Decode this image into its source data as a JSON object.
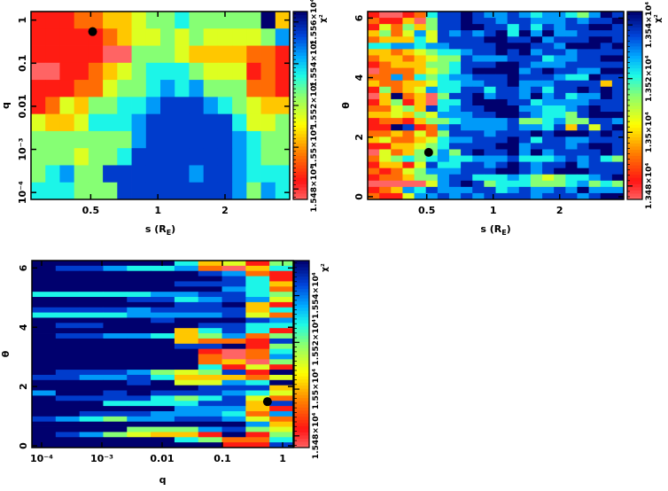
{
  "chart_data": [
    {
      "type": "heatmap",
      "id": "s-q",
      "xlabel": "s (R",
      "xlabel_sub": "E",
      "xlabel_end": ")",
      "ylabel": "q",
      "xscale": "log",
      "yscale": "log",
      "xlim": [
        0.27,
        3.9
      ],
      "ylim": [
        6.9e-05,
        1.58
      ],
      "xticks": [
        {
          "value": 0.5,
          "label": "0.5"
        },
        {
          "value": 1,
          "label": "1"
        },
        {
          "value": 2,
          "label": "2"
        }
      ],
      "yticks": [
        {
          "value": 1,
          "label": "1"
        },
        {
          "value": 0.1,
          "label": "0.1"
        },
        {
          "value": 0.01,
          "label": "0.01"
        },
        {
          "value": 0.001,
          "label": "10⁻³"
        },
        {
          "value": 0.0001,
          "label": "10⁻⁴"
        }
      ],
      "colorbar": {
        "label": "χ²",
        "range": [
          15475,
          15565
        ],
        "ticks": [
          {
            "value": 15480,
            "label": "1.548×10⁴"
          },
          {
            "value": 15500,
            "label": "1.55×10⁴"
          },
          {
            "value": 15520,
            "label": "1.552×10⁴"
          },
          {
            "value": 15540,
            "label": "1.554×10⁴"
          },
          {
            "value": 15560,
            "label": "1.556×10⁴"
          }
        ]
      },
      "grid_note": "rows top (high y) to bottom; digits 0 (lowest χ², red) to 9 (highest χ², navy)",
      "grid": [
        "111223345565555593",
        "111112344545444457",
        "111110055543333221",
        "001123456665444121",
        "111224556767555221",
        "124355667888765433",
        "433466678888886445",
        "555555578888887655",
        "555455688888887655",
        "567558888887887666",
        "666555888888887576"
      ],
      "best_fit": {
        "x": 0.51,
        "y": 0.54
      }
    },
    {
      "type": "heatmap",
      "id": "s-theta",
      "xlabel": "s (R",
      "xlabel_sub": "E",
      "xlabel_end": ")",
      "ylabel": "θ",
      "xscale": "log",
      "yscale": "linear",
      "xlim": [
        0.27,
        3.9
      ],
      "ylim": [
        -0.09,
        6.22
      ],
      "xticks": [
        {
          "value": 0.5,
          "label": "0.5"
        },
        {
          "value": 1,
          "label": "1"
        },
        {
          "value": 2,
          "label": "2"
        }
      ],
      "yticks": [
        {
          "value": 0,
          "label": "0"
        },
        {
          "value": 2,
          "label": "2"
        },
        {
          "value": 4,
          "label": "4"
        },
        {
          "value": 6,
          "label": "6"
        }
      ],
      "colorbar": {
        "label": "χ²",
        "range": [
          13475,
          13545
        ],
        "ticks": [
          {
            "value": 13480,
            "label": "1.348×10⁴"
          },
          {
            "value": 13500,
            "label": "1.35×10⁴"
          },
          {
            "value": 13520,
            "label": "1.352×10⁴"
          },
          {
            "value": 13540,
            "label": "1.354×10⁴"
          }
        ]
      },
      "grid": [
        "1001268898778767765798",
        "2113058898878877787889",
        "1425358899886868788998",
        "3524748787896979778888",
        "2333648888998897888998",
        "6677677888899988799989",
        "3323456678898978878888",
        "2332345587778886778899",
        "1233355688899877788888",
        "0222345689999789887799",
        "2272656778889888766988",
        "3223346677889777888838",
        "1523476688688786889898",
        "0392305889788797867798",
        "1351306689998867777888",
        "2245386788999776678988",
        "3343547778899876658999",
        "1221355677778556755887",
        "1198127877778776838489",
        "2232425888788898999898",
        "3422346778889868877888",
        "1133456888899788878998",
        "0423557589889797888898",
        "2456567667778666787865",
        "1331486688789878897888",
        "2124577788899878999888",
        "1223557886667654566789",
        "0000047898566655567565",
        "1237687778867877879777",
        "2114778787888878887899"
      ],
      "best_fit": {
        "x": 0.51,
        "y": 1.49
      }
    },
    {
      "type": "heatmap",
      "id": "q-theta",
      "xlabel": "q",
      "xlabel_sub": "",
      "xlabel_end": "",
      "ylabel": "θ",
      "xscale": "log",
      "yscale": "linear",
      "xlim": [
        6.9e-05,
        1.5
      ],
      "ylim": [
        -0.06,
        6.25
      ],
      "xticks": [
        {
          "value": 0.0001,
          "label": "10⁻⁴"
        },
        {
          "value": 0.001,
          "label": "10⁻³"
        },
        {
          "value": 0.01,
          "label": "0.01"
        },
        {
          "value": 0.1,
          "label": "0.1"
        },
        {
          "value": 1,
          "label": "1"
        }
      ],
      "yticks": [
        {
          "value": 0,
          "label": "0"
        },
        {
          "value": 2,
          "label": "2"
        },
        {
          "value": 4,
          "label": "4"
        },
        {
          "value": 6,
          "label": "6"
        }
      ],
      "colorbar": {
        "label": "χ²",
        "range": [
          15475,
          15555
        ],
        "ticks": [
          {
            "value": 15480,
            "label": "1.548×10⁴"
          },
          {
            "value": 15500,
            "label": "1.55×10⁴"
          },
          {
            "value": 15520,
            "label": "1.552×10⁴"
          },
          {
            "value": 15540,
            "label": "1.554×10⁴"
          }
        ]
      },
      "grid": [
        "99999963415",
        "98876672036",
        "99999998721",
        "99999999861",
        "99999988863",
        "99999999762",
        "66666778865",
        "99998867874",
        "99999988931",
        "88887888836",
        "66667777842",
        "99999899987",
        "98899998866",
        "99999936861",
        "98877635725",
        "99999932218",
        "99999988915",
        "99999991026",
        "99999992027",
        "99999992305",
        "99999996141",
        "98887545819",
        "88778633324",
        "99998944769",
        "99999998883",
        "79989888764",
        "98888656842",
        "99966668838",
        "99999977731",
        "99888777627",
        "87657788742",
        "99999999973",
        "99995557854",
        "98754331915",
        "99999965226",
        "99999999118"
      ],
      "best_fit": {
        "x": 0.56,
        "y": 1.49
      }
    }
  ]
}
